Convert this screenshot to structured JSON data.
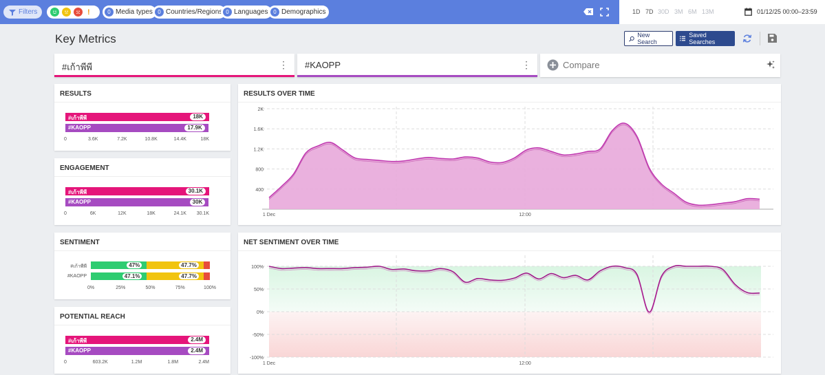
{
  "topbar": {
    "filters_label": "Filters",
    "warning_glyph": "!",
    "media_types": {
      "count": "0",
      "label": "Media types"
    },
    "countries": {
      "count": "0",
      "label": "Countries/Regions"
    },
    "languages": {
      "count": "0",
      "label": "Languages"
    },
    "demographics": {
      "count": "0",
      "label": "Demographics"
    },
    "ranges": [
      "1D",
      "7D",
      "30D",
      "3M",
      "6M",
      "13M"
    ],
    "date_range": "01/12/25 00:00–23:59"
  },
  "page": {
    "title": "Key Metrics",
    "new_search": "New Search",
    "saved_searches": "Saved Searches"
  },
  "tabs": [
    {
      "label": "#เก้าพีพี",
      "color": "#e5157a"
    },
    {
      "label": "#KAOPP",
      "color": "#a64bc1"
    },
    {
      "label": "Compare"
    }
  ],
  "results": {
    "title": "RESULTS",
    "rows": [
      {
        "name": "#เก้าพีพี",
        "value": "18K",
        "fraction": 1.0,
        "color": "#e5157a"
      },
      {
        "name": "#KAOPP",
        "value": "17.9K",
        "fraction": 0.994,
        "color": "#a64bc1"
      }
    ],
    "ticks": [
      "0",
      "3.6K",
      "7.2K",
      "10.8K",
      "14.4K",
      "18K"
    ]
  },
  "engagement": {
    "title": "ENGAGEMENT",
    "rows": [
      {
        "name": "#เก้าพีพี",
        "value": "30.1K",
        "fraction": 1.0,
        "color": "#e5157a"
      },
      {
        "name": "#KAOPP",
        "value": "30K",
        "fraction": 0.997,
        "color": "#a64bc1"
      }
    ],
    "ticks": [
      "0",
      "6K",
      "12K",
      "18K",
      "24.1K",
      "30.1K"
    ]
  },
  "sentiment": {
    "title": "SENTIMENT",
    "rows": [
      {
        "name": "#เก้าพีพี",
        "positive": 47,
        "positive_label": "47%",
        "neutral": 47.7,
        "neutral_label": "47.7%",
        "negative": 5.3
      },
      {
        "name": "#KAOPP",
        "positive": 47.1,
        "positive_label": "47.1%",
        "neutral": 47.7,
        "neutral_label": "47.7%",
        "negative": 5.2
      }
    ],
    "ticks": [
      "0%",
      "25%",
      "50%",
      "75%",
      "100%"
    ],
    "colors": {
      "positive": "#2ecc71",
      "neutral": "#f1c40f",
      "negative": "#e74c3c"
    }
  },
  "reach": {
    "title": "POTENTIAL REACH",
    "rows": [
      {
        "name": "#เก้าพีพี",
        "value": "2.4M",
        "fraction": 1.0,
        "color": "#e5157a"
      },
      {
        "name": "#KAOPP",
        "value": "2.4M",
        "fraction": 1.0,
        "color": "#a64bc1"
      }
    ],
    "ticks": [
      "0",
      "603.2K",
      "1.2M",
      "1.8M",
      "2.4M"
    ]
  },
  "chart_data": [
    {
      "type": "area",
      "title": "RESULTS OVER TIME",
      "x_labels": [
        "1 Dec",
        "12:00"
      ],
      "y_ticks": [
        "400",
        "800",
        "1.2K",
        "1.6K",
        "2K"
      ],
      "ylim": [
        0,
        2000
      ],
      "series": [
        {
          "name": "#เก้าพีพี",
          "color": "#c03ab0",
          "values": [
            230,
            450,
            700,
            1120,
            1260,
            1330,
            1180,
            1020,
            990,
            970,
            950,
            960,
            1000,
            1030,
            1010,
            1000,
            1040,
            1020,
            940,
            930,
            1020,
            1180,
            1220,
            1150,
            1080,
            1100,
            1150,
            1200,
            1570,
            1710,
            1450,
            820,
            500,
            320,
            140,
            80,
            90,
            120,
            150,
            210,
            200
          ]
        }
      ]
    },
    {
      "type": "line",
      "title": "NET SENTIMENT OVER TIME",
      "x_labels": [
        "1 Dec",
        "12:00"
      ],
      "y_ticks": [
        "100%",
        "50%",
        "0%",
        "-50%",
        "-100%"
      ],
      "ylim": [
        -100,
        100
      ],
      "series": [
        {
          "name": "#เก้าพีพี",
          "color": "#a1188a",
          "values": [
            100,
            95,
            96,
            97,
            95,
            95,
            95,
            97,
            98,
            100,
            93,
            94,
            90,
            90,
            95,
            88,
            65,
            73,
            70,
            69,
            74,
            85,
            72,
            84,
            75,
            80,
            70,
            90,
            100,
            97,
            82,
            -1,
            78,
            100,
            100,
            100,
            100,
            93,
            60,
            42,
            41
          ]
        }
      ]
    }
  ]
}
